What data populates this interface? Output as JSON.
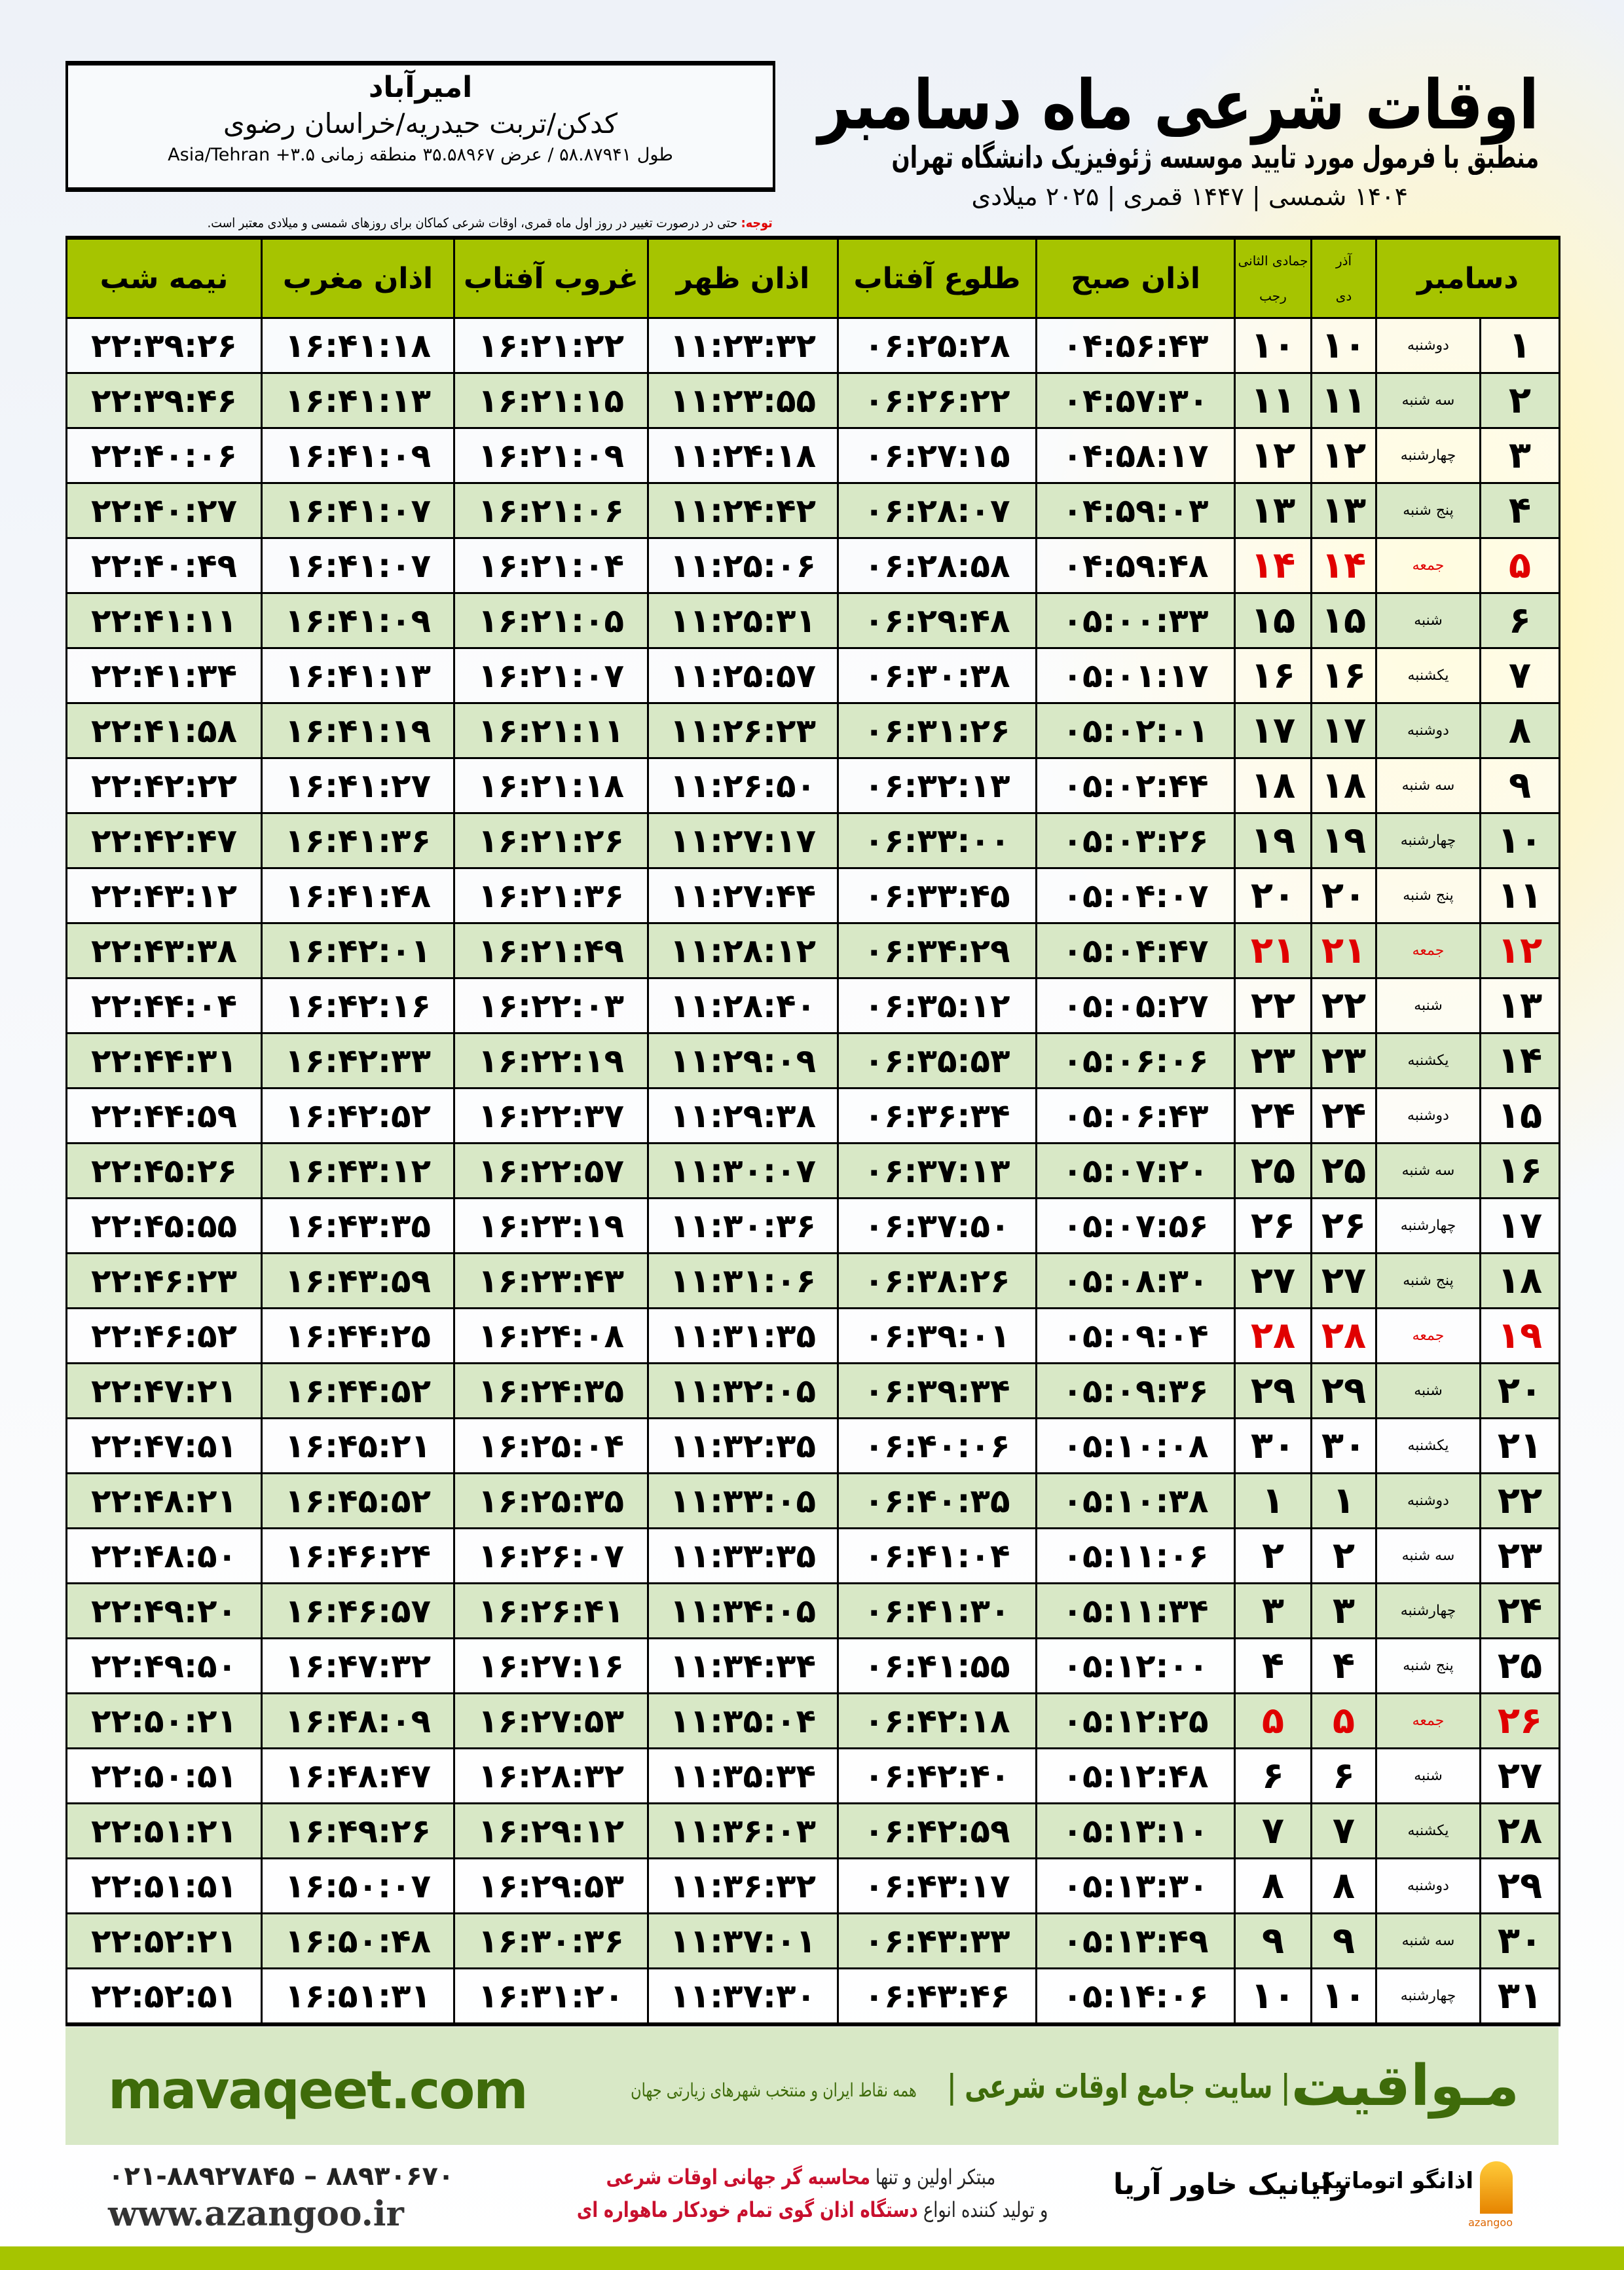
{
  "location": {
    "city": "امیرآباد",
    "region": "کدکن/تربت حیدریه/خراسان رضوی",
    "coords": "طول ۵۸.۸۷۹۴۱ / عرض ۳۵.۵۸۹۶۷ منطقه زمانی ۳.۵+ Asia/Tehran"
  },
  "header": {
    "title": "اوقات شرعی ماه دسامبر",
    "subtitle": "منطبق با فرمول مورد تایید موسسه ژئوفیزیک دانشگاه تهران",
    "dates": "۱۴۰۴ شمسی | ۱۴۴۷ قمری | ۲۰۲۵ میلادی"
  },
  "note": {
    "label": "توجه:",
    "text": " حتی در درصورت تغییر در روز اول ماه قمری، اوقات شرعی کماکان برای روزهای شمسی و میلادی معتبر است."
  },
  "table": {
    "headers": {
      "month": "دسامبر",
      "shamsi": "آذر",
      "shamsi2": "دی",
      "qamari": "جمادی الثانی",
      "qamari2": "رجب",
      "fajr": "اذان صبح",
      "sunrise": "طلوع آفتاب",
      "dhuhr": "اذان ظهر",
      "sunset": "غروب آفتاب",
      "maghrib": "اذان مغرب",
      "midnight": "نیمه شب"
    },
    "holiday_color": "#e00000",
    "header_color": "#a6c400",
    "rows": [
      {
        "day": "۱",
        "weekday": "دوشنبه",
        "shamsi": "۱۰",
        "qamari": "۱۰",
        "fajr": "۰۴:۵۶:۴۳",
        "sunrise": "۰۶:۲۵:۲۸",
        "dhuhr": "۱۱:۲۳:۳۲",
        "sunset": "۱۶:۲۱:۲۲",
        "maghrib": "۱۶:۴۱:۱۸",
        "midnight": "۲۲:۳۹:۲۶"
      },
      {
        "day": "۲",
        "weekday": "سه شنبه",
        "shamsi": "۱۱",
        "qamari": "۱۱",
        "fajr": "۰۴:۵۷:۳۰",
        "sunrise": "۰۶:۲۶:۲۲",
        "dhuhr": "۱۱:۲۳:۵۵",
        "sunset": "۱۶:۲۱:۱۵",
        "maghrib": "۱۶:۴۱:۱۳",
        "midnight": "۲۲:۳۹:۴۶"
      },
      {
        "day": "۳",
        "weekday": "چهارشنبه",
        "shamsi": "۱۲",
        "qamari": "۱۲",
        "fajr": "۰۴:۵۸:۱۷",
        "sunrise": "۰۶:۲۷:۱۵",
        "dhuhr": "۱۱:۲۴:۱۸",
        "sunset": "۱۶:۲۱:۰۹",
        "maghrib": "۱۶:۴۱:۰۹",
        "midnight": "۲۲:۴۰:۰۶"
      },
      {
        "day": "۴",
        "weekday": "پنج شنبه",
        "shamsi": "۱۳",
        "qamari": "۱۳",
        "fajr": "۰۴:۵۹:۰۳",
        "sunrise": "۰۶:۲۸:۰۷",
        "dhuhr": "۱۱:۲۴:۴۲",
        "sunset": "۱۶:۲۱:۰۶",
        "maghrib": "۱۶:۴۱:۰۷",
        "midnight": "۲۲:۴۰:۲۷"
      },
      {
        "day": "۵",
        "weekday": "جمعه",
        "holiday": true,
        "shamsi": "۱۴",
        "qamari": "۱۴",
        "fajr": "۰۴:۵۹:۴۸",
        "sunrise": "۰۶:۲۸:۵۸",
        "dhuhr": "۱۱:۲۵:۰۶",
        "sunset": "۱۶:۲۱:۰۴",
        "maghrib": "۱۶:۴۱:۰۷",
        "midnight": "۲۲:۴۰:۴۹"
      },
      {
        "day": "۶",
        "weekday": "شنبه",
        "shamsi": "۱۵",
        "qamari": "۱۵",
        "fajr": "۰۵:۰۰:۳۳",
        "sunrise": "۰۶:۲۹:۴۸",
        "dhuhr": "۱۱:۲۵:۳۱",
        "sunset": "۱۶:۲۱:۰۵",
        "maghrib": "۱۶:۴۱:۰۹",
        "midnight": "۲۲:۴۱:۱۱"
      },
      {
        "day": "۷",
        "weekday": "یکشنبه",
        "shamsi": "۱۶",
        "qamari": "۱۶",
        "fajr": "۰۵:۰۱:۱۷",
        "sunrise": "۰۶:۳۰:۳۸",
        "dhuhr": "۱۱:۲۵:۵۷",
        "sunset": "۱۶:۲۱:۰۷",
        "maghrib": "۱۶:۴۱:۱۳",
        "midnight": "۲۲:۴۱:۳۴"
      },
      {
        "day": "۸",
        "weekday": "دوشنبه",
        "shamsi": "۱۷",
        "qamari": "۱۷",
        "fajr": "۰۵:۰۲:۰۱",
        "sunrise": "۰۶:۳۱:۲۶",
        "dhuhr": "۱۱:۲۶:۲۳",
        "sunset": "۱۶:۲۱:۱۱",
        "maghrib": "۱۶:۴۱:۱۹",
        "midnight": "۲۲:۴۱:۵۸"
      },
      {
        "day": "۹",
        "weekday": "سه شنبه",
        "shamsi": "۱۸",
        "qamari": "۱۸",
        "fajr": "۰۵:۰۲:۴۴",
        "sunrise": "۰۶:۳۲:۱۳",
        "dhuhr": "۱۱:۲۶:۵۰",
        "sunset": "۱۶:۲۱:۱۸",
        "maghrib": "۱۶:۴۱:۲۷",
        "midnight": "۲۲:۴۲:۲۲"
      },
      {
        "day": "۱۰",
        "weekday": "چهارشنبه",
        "shamsi": "۱۹",
        "qamari": "۱۹",
        "fajr": "۰۵:۰۳:۲۶",
        "sunrise": "۰۶:۳۳:۰۰",
        "dhuhr": "۱۱:۲۷:۱۷",
        "sunset": "۱۶:۲۱:۲۶",
        "maghrib": "۱۶:۴۱:۳۶",
        "midnight": "۲۲:۴۲:۴۷"
      },
      {
        "day": "۱۱",
        "weekday": "پنج شنبه",
        "shamsi": "۲۰",
        "qamari": "۲۰",
        "fajr": "۰۵:۰۴:۰۷",
        "sunrise": "۰۶:۳۳:۴۵",
        "dhuhr": "۱۱:۲۷:۴۴",
        "sunset": "۱۶:۲۱:۳۶",
        "maghrib": "۱۶:۴۱:۴۸",
        "midnight": "۲۲:۴۳:۱۲"
      },
      {
        "day": "۱۲",
        "weekday": "جمعه",
        "holiday": true,
        "shamsi": "۲۱",
        "qamari": "۲۱",
        "fajr": "۰۵:۰۴:۴۷",
        "sunrise": "۰۶:۳۴:۲۹",
        "dhuhr": "۱۱:۲۸:۱۲",
        "sunset": "۱۶:۲۱:۴۹",
        "maghrib": "۱۶:۴۲:۰۱",
        "midnight": "۲۲:۴۳:۳۸"
      },
      {
        "day": "۱۳",
        "weekday": "شنبه",
        "shamsi": "۲۲",
        "qamari": "۲۲",
        "fajr": "۰۵:۰۵:۲۷",
        "sunrise": "۰۶:۳۵:۱۲",
        "dhuhr": "۱۱:۲۸:۴۰",
        "sunset": "۱۶:۲۲:۰۳",
        "maghrib": "۱۶:۴۲:۱۶",
        "midnight": "۲۲:۴۴:۰۴"
      },
      {
        "day": "۱۴",
        "weekday": "یکشنبه",
        "shamsi": "۲۳",
        "qamari": "۲۳",
        "fajr": "۰۵:۰۶:۰۶",
        "sunrise": "۰۶:۳۵:۵۳",
        "dhuhr": "۱۱:۲۹:۰۹",
        "sunset": "۱۶:۲۲:۱۹",
        "maghrib": "۱۶:۴۲:۳۳",
        "midnight": "۲۲:۴۴:۳۱"
      },
      {
        "day": "۱۵",
        "weekday": "دوشنبه",
        "shamsi": "۲۴",
        "qamari": "۲۴",
        "fajr": "۰۵:۰۶:۴۳",
        "sunrise": "۰۶:۳۶:۳۴",
        "dhuhr": "۱۱:۲۹:۳۸",
        "sunset": "۱۶:۲۲:۳۷",
        "maghrib": "۱۶:۴۲:۵۲",
        "midnight": "۲۲:۴۴:۵۹"
      },
      {
        "day": "۱۶",
        "weekday": "سه شنبه",
        "shamsi": "۲۵",
        "qamari": "۲۵",
        "fajr": "۰۵:۰۷:۲۰",
        "sunrise": "۰۶:۳۷:۱۳",
        "dhuhr": "۱۱:۳۰:۰۷",
        "sunset": "۱۶:۲۲:۵۷",
        "maghrib": "۱۶:۴۳:۱۲",
        "midnight": "۲۲:۴۵:۲۶"
      },
      {
        "day": "۱۷",
        "weekday": "چهارشنبه",
        "shamsi": "۲۶",
        "qamari": "۲۶",
        "fajr": "۰۵:۰۷:۵۶",
        "sunrise": "۰۶:۳۷:۵۰",
        "dhuhr": "۱۱:۳۰:۳۶",
        "sunset": "۱۶:۲۳:۱۹",
        "maghrib": "۱۶:۴۳:۳۵",
        "midnight": "۲۲:۴۵:۵۵"
      },
      {
        "day": "۱۸",
        "weekday": "پنج شنبه",
        "shamsi": "۲۷",
        "qamari": "۲۷",
        "fajr": "۰۵:۰۸:۳۰",
        "sunrise": "۰۶:۳۸:۲۶",
        "dhuhr": "۱۱:۳۱:۰۶",
        "sunset": "۱۶:۲۳:۴۳",
        "maghrib": "۱۶:۴۳:۵۹",
        "midnight": "۲۲:۴۶:۲۳"
      },
      {
        "day": "۱۹",
        "weekday": "جمعه",
        "holiday": true,
        "shamsi": "۲۸",
        "qamari": "۲۸",
        "fajr": "۰۵:۰۹:۰۴",
        "sunrise": "۰۶:۳۹:۰۱",
        "dhuhr": "۱۱:۳۱:۳۵",
        "sunset": "۱۶:۲۴:۰۸",
        "maghrib": "۱۶:۴۴:۲۵",
        "midnight": "۲۲:۴۶:۵۲"
      },
      {
        "day": "۲۰",
        "weekday": "شنبه",
        "shamsi": "۲۹",
        "qamari": "۲۹",
        "fajr": "۰۵:۰۹:۳۶",
        "sunrise": "۰۶:۳۹:۳۴",
        "dhuhr": "۱۱:۳۲:۰۵",
        "sunset": "۱۶:۲۴:۳۵",
        "maghrib": "۱۶:۴۴:۵۲",
        "midnight": "۲۲:۴۷:۲۱"
      },
      {
        "day": "۲۱",
        "weekday": "یکشنبه",
        "shamsi": "۳۰",
        "qamari": "۳۰",
        "fajr": "۰۵:۱۰:۰۸",
        "sunrise": "۰۶:۴۰:۰۶",
        "dhuhr": "۱۱:۳۲:۳۵",
        "sunset": "۱۶:۲۵:۰۴",
        "maghrib": "۱۶:۴۵:۲۱",
        "midnight": "۲۲:۴۷:۵۱"
      },
      {
        "day": "۲۲",
        "weekday": "دوشنبه",
        "shamsi": "۱",
        "qamari": "۱",
        "fajr": "۰۵:۱۰:۳۸",
        "sunrise": "۰۶:۴۰:۳۵",
        "dhuhr": "۱۱:۳۳:۰۵",
        "sunset": "۱۶:۲۵:۳۵",
        "maghrib": "۱۶:۴۵:۵۲",
        "midnight": "۲۲:۴۸:۲۱"
      },
      {
        "day": "۲۳",
        "weekday": "سه شنبه",
        "shamsi": "۲",
        "qamari": "۲",
        "fajr": "۰۵:۱۱:۰۶",
        "sunrise": "۰۶:۴۱:۰۴",
        "dhuhr": "۱۱:۳۳:۳۵",
        "sunset": "۱۶:۲۶:۰۷",
        "maghrib": "۱۶:۴۶:۲۴",
        "midnight": "۲۲:۴۸:۵۰"
      },
      {
        "day": "۲۴",
        "weekday": "چهارشنبه",
        "shamsi": "۳",
        "qamari": "۳",
        "fajr": "۰۵:۱۱:۳۴",
        "sunrise": "۰۶:۴۱:۳۰",
        "dhuhr": "۱۱:۳۴:۰۵",
        "sunset": "۱۶:۲۶:۴۱",
        "maghrib": "۱۶:۴۶:۵۷",
        "midnight": "۲۲:۴۹:۲۰"
      },
      {
        "day": "۲۵",
        "weekday": "پنج شنبه",
        "shamsi": "۴",
        "qamari": "۴",
        "fajr": "۰۵:۱۲:۰۰",
        "sunrise": "۰۶:۴۱:۵۵",
        "dhuhr": "۱۱:۳۴:۳۴",
        "sunset": "۱۶:۲۷:۱۶",
        "maghrib": "۱۶:۴۷:۳۲",
        "midnight": "۲۲:۴۹:۵۰"
      },
      {
        "day": "۲۶",
        "weekday": "جمعه",
        "holiday": true,
        "shamsi": "۵",
        "qamari": "۵",
        "fajr": "۰۵:۱۲:۲۵",
        "sunrise": "۰۶:۴۲:۱۸",
        "dhuhr": "۱۱:۳۵:۰۴",
        "sunset": "۱۶:۲۷:۵۳",
        "maghrib": "۱۶:۴۸:۰۹",
        "midnight": "۲۲:۵۰:۲۱"
      },
      {
        "day": "۲۷",
        "weekday": "شنبه",
        "shamsi": "۶",
        "qamari": "۶",
        "fajr": "۰۵:۱۲:۴۸",
        "sunrise": "۰۶:۴۲:۴۰",
        "dhuhr": "۱۱:۳۵:۳۴",
        "sunset": "۱۶:۲۸:۳۲",
        "maghrib": "۱۶:۴۸:۴۷",
        "midnight": "۲۲:۵۰:۵۱"
      },
      {
        "day": "۲۸",
        "weekday": "یکشنبه",
        "shamsi": "۷",
        "qamari": "۷",
        "fajr": "۰۵:۱۳:۱۰",
        "sunrise": "۰۶:۴۲:۵۹",
        "dhuhr": "۱۱:۳۶:۰۳",
        "sunset": "۱۶:۲۹:۱۲",
        "maghrib": "۱۶:۴۹:۲۶",
        "midnight": "۲۲:۵۱:۲۱"
      },
      {
        "day": "۲۹",
        "weekday": "دوشنبه",
        "shamsi": "۸",
        "qamari": "۸",
        "fajr": "۰۵:۱۳:۳۰",
        "sunrise": "۰۶:۴۳:۱۷",
        "dhuhr": "۱۱:۳۶:۳۲",
        "sunset": "۱۶:۲۹:۵۳",
        "maghrib": "۱۶:۵۰:۰۷",
        "midnight": "۲۲:۵۱:۵۱"
      },
      {
        "day": "۳۰",
        "weekday": "سه شنبه",
        "shamsi": "۹",
        "qamari": "۹",
        "fajr": "۰۵:۱۳:۴۹",
        "sunrise": "۰۶:۴۳:۳۳",
        "dhuhr": "۱۱:۳۷:۰۱",
        "sunset": "۱۶:۳۰:۳۶",
        "maghrib": "۱۶:۵۰:۴۸",
        "midnight": "۲۲:۵۲:۲۱"
      },
      {
        "day": "۳۱",
        "weekday": "چهارشنبه",
        "shamsi": "۱۰",
        "qamari": "۱۰",
        "fajr": "۰۵:۱۴:۰۶",
        "sunrise": "۰۶:۴۳:۴۶",
        "dhuhr": "۱۱:۳۷:۳۰",
        "sunset": "۱۶:۳۱:۲۰",
        "maghrib": "۱۶:۵۱:۳۱",
        "midnight": "۲۲:۵۲:۵۱"
      }
    ]
  },
  "banner": {
    "brand": "مـواقیت",
    "tagline": "| سایت جامع اوقات شرعی |",
    "tagline2": "همه نقاط ایران و منتخب شهرهای زیارتی جهان",
    "site": "mavaqeet.com",
    "color": "#3e6b0a",
    "background": "#d8e8c6"
  },
  "footer": {
    "phone": "۰۲۱-۸۸۹۲۷۸۴۵ – ۸۸۹۳۰۶۷۰",
    "website": "www.azangoo.ir",
    "line1_a": "مبتکر اولین و تنها ",
    "line1_b": "محاسبه گر جهانی اوقات شرعی",
    "line2_a": "و تولید کننده انواع ",
    "line2_b": "دستگاه اذان گوی تمام خودکار ماهواره ای",
    "logo_rayanik": "رایانیک خاور آریا",
    "logo_azangoo": "اذانگو اتوماتیک",
    "logo_azangoo_sub": "azangoo",
    "bar_color": "#a6c400"
  }
}
